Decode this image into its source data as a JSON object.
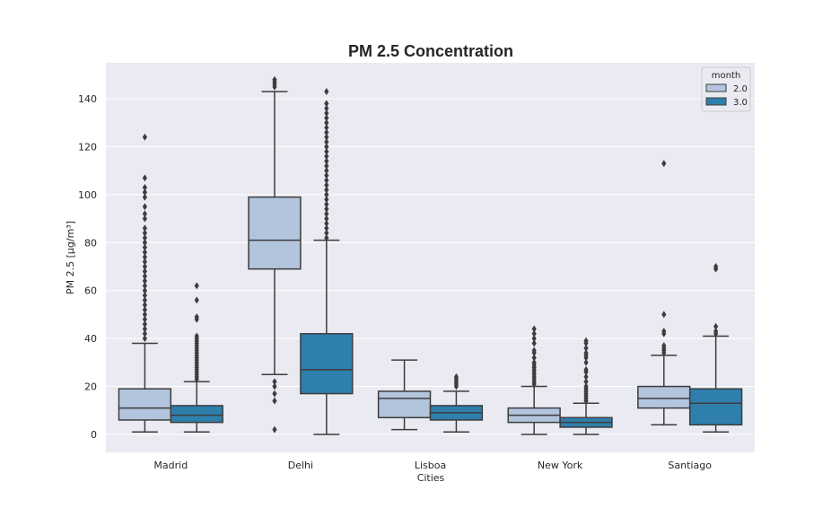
{
  "chart_data": {
    "type": "box",
    "title": "PM 2.5 Concentration",
    "xlabel": "Cities",
    "ylabel": "PM 2.5 [µg/m³]",
    "ylim": [
      -7.5,
      155
    ],
    "yticks": [
      0,
      20,
      40,
      60,
      80,
      100,
      120,
      140
    ],
    "grid": true,
    "legend": {
      "title": "month",
      "placement": "top-right",
      "entries": [
        "2.0",
        "3.0"
      ]
    },
    "categories": [
      "Madrid",
      "Delhi",
      "Lisboa",
      "New York",
      "Santiago"
    ],
    "series": [
      {
        "name": "2.0",
        "color": "#b3c4dd",
        "boxes": [
          {
            "whislo": 1,
            "q1": 6,
            "med": 11,
            "q3": 19,
            "whishi": 38,
            "fliers": [
              40,
              42,
              44,
              46,
              48,
              50,
              52,
              54,
              56,
              58,
              60,
              62,
              64,
              66,
              68,
              70,
              72,
              74,
              76,
              78,
              80,
              82,
              84,
              86,
              90,
              92,
              95,
              99,
              101,
              103,
              107,
              124
            ]
          },
          {
            "whislo": 25,
            "q1": 69,
            "med": 81,
            "q3": 99,
            "whishi": 143,
            "fliers": [
              2,
              14,
              17,
              20,
              22,
              145,
              146,
              147,
              148
            ]
          },
          {
            "whislo": 2,
            "q1": 7,
            "med": 15,
            "q3": 18,
            "whishi": 31,
            "fliers": []
          },
          {
            "whislo": 0,
            "q1": 5,
            "med": 8,
            "q3": 11,
            "whishi": 20,
            "fliers": [
              21,
              22,
              23,
              24,
              25,
              26,
              27,
              28,
              29,
              30,
              32,
              34,
              35,
              38,
              40,
              42,
              44
            ]
          },
          {
            "whislo": 4,
            "q1": 11,
            "med": 15,
            "q3": 20,
            "whishi": 33,
            "fliers": [
              34,
              35,
              36,
              37,
              42,
              43,
              50,
              113
            ]
          }
        ]
      },
      {
        "name": "3.0",
        "color": "#2f7fad",
        "boxes": [
          {
            "whislo": 1,
            "q1": 5,
            "med": 8,
            "q3": 12,
            "whishi": 22,
            "fliers": [
              23,
              24,
              25,
              26,
              27,
              28,
              29,
              30,
              31,
              32,
              33,
              34,
              35,
              36,
              37,
              38,
              39,
              40,
              41,
              48,
              49,
              56,
              62
            ]
          },
          {
            "whislo": 0,
            "q1": 17,
            "med": 27,
            "q3": 42,
            "whishi": 81,
            "fliers": [
              82,
              84,
              86,
              88,
              90,
              92,
              94,
              96,
              98,
              100,
              102,
              104,
              106,
              108,
              110,
              112,
              114,
              116,
              118,
              120,
              122,
              124,
              126,
              128,
              130,
              132,
              134,
              136,
              138,
              143
            ]
          },
          {
            "whislo": 1,
            "q1": 6,
            "med": 9,
            "q3": 12,
            "whishi": 18,
            "fliers": [
              20,
              21,
              22,
              23,
              24
            ]
          },
          {
            "whislo": 0,
            "q1": 3,
            "med": 5,
            "q3": 7,
            "whishi": 13,
            "fliers": [
              14,
              15,
              16,
              17,
              18,
              19,
              20,
              22,
              24,
              26,
              27,
              30,
              32,
              33,
              34,
              36,
              38,
              39
            ]
          },
          {
            "whislo": 1,
            "q1": 4,
            "med": 13,
            "q3": 19,
            "whishi": 41,
            "fliers": [
              42,
              43,
              45,
              69,
              70
            ]
          }
        ]
      }
    ]
  }
}
